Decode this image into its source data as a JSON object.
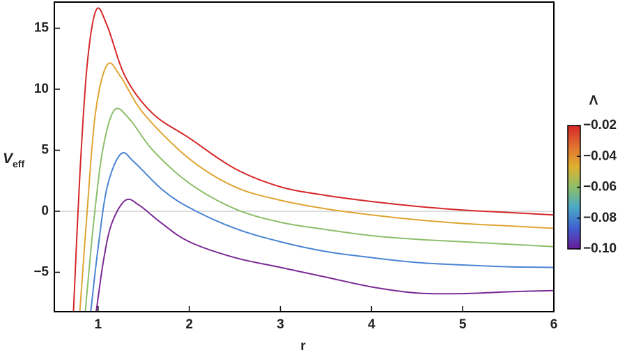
{
  "chart_data": {
    "type": "line",
    "x_label": "r",
    "y_label": "V",
    "y_label_subscript": "eff",
    "xlim": [
      0.52,
      6
    ],
    "ylim": [
      -8.23,
      17.14
    ],
    "xticks": [
      1,
      2,
      3,
      4,
      5,
      6
    ],
    "yticks": [
      {
        "value": -5,
        "label": "−5"
      },
      0,
      5,
      10,
      15
    ],
    "zero_line": true,
    "series": [
      {
        "color": "#d62728",
        "x": [
          0.73,
          0.8,
          0.88,
          0.98,
          1.1,
          1.3,
          1.6,
          2,
          2.5,
          3,
          3.5,
          4,
          4.5,
          5,
          5.5,
          6
        ],
        "values": [
          -8.2,
          3,
          12,
          16.5,
          15.2,
          11,
          8,
          6,
          3.5,
          2,
          1.3,
          0.8,
          0.4,
          0.1,
          -0.1,
          -0.3
        ]
      },
      {
        "color": "#e0a534",
        "x": [
          0.8,
          0.88,
          0.97,
          1.1,
          1.25,
          1.5,
          2,
          2.5,
          3,
          3.5,
          4,
          4.5,
          5,
          5.5,
          6
        ],
        "values": [
          -8.2,
          0,
          8,
          12,
          11,
          8,
          4.3,
          2,
          0.9,
          0.2,
          -0.3,
          -0.7,
          -1,
          -1.2,
          -1.4
        ]
      },
      {
        "color": "#8cbf6a",
        "x": [
          0.86,
          0.95,
          1.05,
          1.18,
          1.35,
          1.6,
          2,
          2.5,
          3,
          3.5,
          4,
          4.5,
          5,
          5.5,
          6
        ],
        "values": [
          -8.2,
          -1,
          5,
          8.3,
          7.5,
          5,
          2.3,
          0.2,
          -0.9,
          -1.5,
          -2,
          -2.3,
          -2.5,
          -2.7,
          -2.9
        ]
      },
      {
        "color": "#4a84d4",
        "x": [
          0.92,
          1.0,
          1.1,
          1.25,
          1.4,
          1.7,
          2,
          2.5,
          3,
          3.5,
          4,
          4.5,
          5,
          5.5,
          6
        ],
        "values": [
          -8.2,
          -3,
          2,
          4.7,
          4,
          1.8,
          0.3,
          -1.4,
          -2.5,
          -3.3,
          -3.8,
          -4.2,
          -4.4,
          -4.55,
          -4.6
        ]
      },
      {
        "color": "#7b2a94",
        "x": [
          0.98,
          1.06,
          1.15,
          1.3,
          1.45,
          1.7,
          2,
          2.5,
          3,
          3.5,
          4,
          4.5,
          5,
          5.5,
          6
        ],
        "values": [
          -8.2,
          -4,
          -1,
          0.9,
          0.5,
          -1,
          -2.5,
          -3.8,
          -4.6,
          -5.4,
          -6.2,
          -6.7,
          -6.75,
          -6.6,
          -6.5
        ]
      }
    ],
    "colorbar": {
      "title": "Λ",
      "lim": [
        -0.1,
        -0.02
      ],
      "colors": [
        "#6a1b9a",
        "#3f5fd0",
        "#4aa8c8",
        "#8cbf6a",
        "#e0b030",
        "#e07030",
        "#d62728"
      ],
      "ticks": [
        {
          "value": -0.02,
          "label": "−0.02"
        },
        {
          "value": -0.04,
          "label": "−0.04"
        },
        {
          "value": -0.06,
          "label": "−0.06"
        },
        {
          "value": -0.08,
          "label": "−0.08"
        },
        {
          "value": -0.1,
          "label": "−0.10"
        }
      ]
    }
  }
}
